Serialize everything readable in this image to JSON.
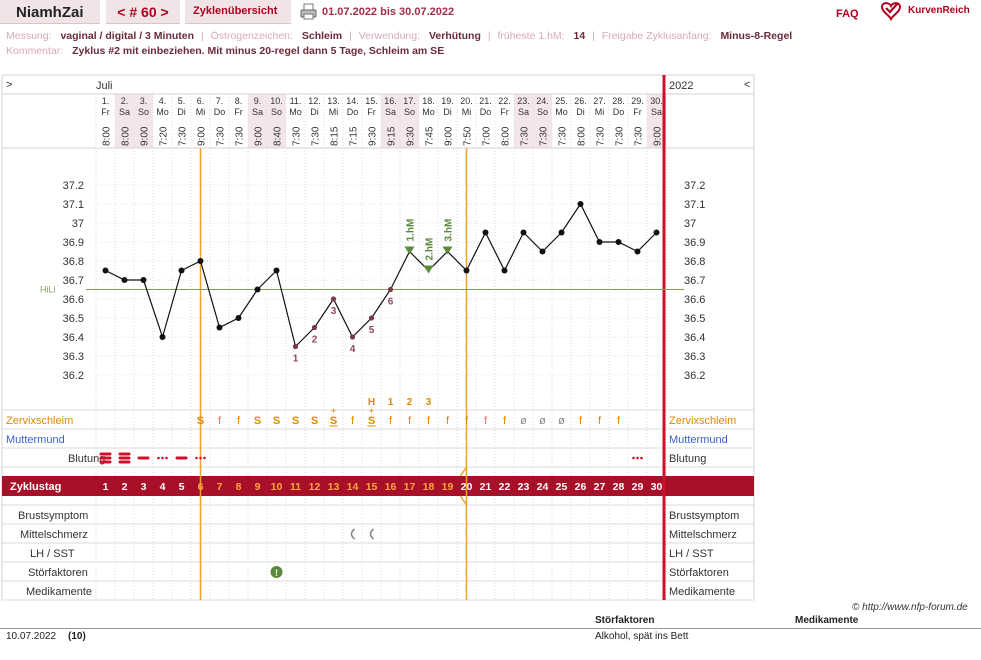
{
  "header": {
    "username": "NiamhZai",
    "cycle_nav": "< # 60 >",
    "overview_tab": "Zyklenübersicht",
    "date_range": "01.07.2022 bis 30.07.2022",
    "faq": "FAQ",
    "logo_text": "KurvenReich"
  },
  "info": {
    "messung_label": "Messung:",
    "messung_value": "vaginal / digital / 3 Minuten",
    "oestrogen_label": "Östrogenzeichen:",
    "oestrogen_value": "Schleim",
    "verwendung_label": "Verwendung:",
    "verwendung_value": "Verhütung",
    "frueheste_label": "früheste 1.hM:",
    "frueheste_value": "14",
    "freigabe_label": "Freigabe Zyklusanfang:",
    "freigabe_value": "Minus-8-Regel",
    "kommentar_label": "Kommentar:",
    "kommentar_value": "Zyklus #2  mit einbeziehen. Mit minus 20-regel dann 5 Tage,  Schleim am SE"
  },
  "chart_data": {
    "type": "line",
    "month_label": "Juli",
    "year_label": "2022",
    "nav_left": ">",
    "nav_right": "<",
    "days": [
      "1",
      "2",
      "3",
      "4",
      "5",
      "6",
      "7",
      "8",
      "9",
      "10",
      "11",
      "12",
      "13",
      "14",
      "15",
      "16",
      "17",
      "18",
      "19",
      "20",
      "21",
      "22",
      "23",
      "24",
      "25",
      "26",
      "27",
      "28",
      "29",
      "30"
    ],
    "weekdays": [
      "Fr",
      "Sa",
      "So",
      "Mo",
      "Di",
      "Mi",
      "Do",
      "Fr",
      "Sa",
      "So",
      "Mo",
      "Di",
      "Mi",
      "Do",
      "Fr",
      "Sa",
      "So",
      "Mo",
      "Di",
      "Mi",
      "Do",
      "Fr",
      "Sa",
      "So",
      "Mo",
      "Di",
      "Mi",
      "Do",
      "Fr",
      "Sa"
    ],
    "times": [
      "8:00",
      "8:00",
      "9:00",
      "7:20",
      "7:30",
      "9:00",
      "7:30",
      "7:30",
      "9:00",
      "8:40",
      "7:30",
      "7:30",
      "8:15",
      "7:15",
      "9:30",
      "9:15",
      "9:30",
      "7:45",
      "9:00",
      "7:50",
      "7:00",
      "8:00",
      "7:30",
      "7:30",
      "7:30",
      "8:00",
      "7:30",
      "7:30",
      "7:30",
      "9:00"
    ],
    "temperatures": [
      36.75,
      36.7,
      36.7,
      36.4,
      36.75,
      36.8,
      36.45,
      36.5,
      36.65,
      36.75,
      36.35,
      36.45,
      36.6,
      36.4,
      36.5,
      36.65,
      36.85,
      36.75,
      36.85,
      36.75,
      36.95,
      36.75,
      36.95,
      36.85,
      36.95,
      37.1,
      36.9,
      36.9,
      36.85,
      36.95
    ],
    "y_ticks": [
      "37.2",
      "37.1",
      "37",
      "36.9",
      "36.8",
      "36.7",
      "36.6",
      "36.5",
      "36.4",
      "36.3",
      "36.2"
    ],
    "ylim": [
      36.2,
      37.2
    ],
    "hili_label": "HiLi",
    "hili_value": 36.65,
    "low_labels": [
      {
        "day": 11,
        "text": "1"
      },
      {
        "day": 12,
        "text": "2"
      },
      {
        "day": 13,
        "text": "3"
      },
      {
        "day": 14,
        "text": "4"
      },
      {
        "day": 15,
        "text": "5"
      },
      {
        "day": 16,
        "text": "6"
      }
    ],
    "high_labels": [
      {
        "day": 17,
        "text": "1.hM"
      },
      {
        "day": 18,
        "text": "2.hM"
      },
      {
        "day": 19,
        "text": "3.hM"
      }
    ],
    "mucus_peak_labels": [
      {
        "day": 15,
        "text": "H"
      },
      {
        "day": 16,
        "text": "1"
      },
      {
        "day": 17,
        "text": "2"
      },
      {
        "day": 18,
        "text": "3"
      }
    ],
    "cervical_mucus": [
      "",
      "",
      "",
      "",
      "",
      "S",
      "f",
      "f",
      "S",
      "S",
      "S",
      "S",
      "S+",
      "f",
      "S+",
      "f",
      "f",
      "f",
      "f",
      "f",
      "f",
      "f",
      "ø",
      "ø",
      "ø",
      "f",
      "f",
      "f",
      "",
      ""
    ],
    "bleeding": [
      "heavy",
      "heavy",
      "medium",
      "spot",
      "medium",
      "spot",
      "",
      "",
      "",
      "",
      "",
      "",
      "",
      "",
      "",
      "",
      "",
      "",
      "",
      "",
      "",
      "",
      "",
      "",
      "",
      "",
      "",
      "",
      "spot",
      ""
    ],
    "pain_days": [
      14,
      15
    ],
    "disturbance_days": [
      10
    ],
    "vertical_lines": [
      5.5,
      19.5
    ],
    "row_labels": {
      "zervix": "Zervixschleim",
      "muttermund": "Muttermund",
      "blutung": "Blutung",
      "zyklustag": "Zyklustag",
      "brust": "Brustsymptom",
      "mittel": "Mittelschmerz",
      "lh": "LH / SST",
      "stoer": "Störfaktoren",
      "medi": "Medikamente"
    }
  },
  "footer": {
    "copyright": "© http://www.nfp-forum.de",
    "col_stoer": "Störfaktoren",
    "col_medi": "Medikamente",
    "entry_date": "10.07.2022",
    "entry_day": "(10)",
    "entry_text": "Alkohol, spät ins Bett"
  }
}
